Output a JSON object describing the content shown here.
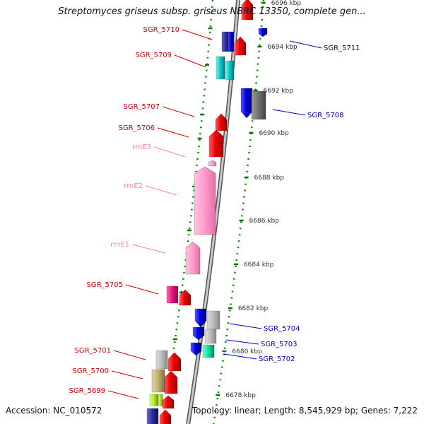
{
  "title": "Streptomyces griseus subsp. griseus NBRC 13350, complete gen...",
  "accession_text": "Accession: NC_010572",
  "summary_text": "Topology: linear; Length: 8,545,929 bp; Genes: 7,222",
  "colors": {
    "forward_label": "#d40000",
    "reverse_label": "#0000c8",
    "rrna_label": "#ff80b8",
    "dotted_track": "#008800",
    "backbone": "#999999",
    "red_gene": "#ee0000",
    "blue_gene": "#0000e0",
    "grey_gene": "#bbbbbb",
    "pink_gene": "#ff99cc"
  },
  "scale_ticks": [
    {
      "label": "6696 kbp"
    },
    {
      "label": "6694 kbp"
    },
    {
      "label": "6692 kbp"
    },
    {
      "label": "6690 kbp"
    },
    {
      "label": "6688 kbp"
    },
    {
      "label": "6686 kbp"
    },
    {
      "label": "6684 kbp"
    },
    {
      "label": "6682 kbp"
    },
    {
      "label": "6680 kbp"
    },
    {
      "label": "6678 kbp"
    }
  ],
  "forward_labels": [
    {
      "text": "SGR_5710",
      "kind": "gene"
    },
    {
      "text": "SGR_5709",
      "kind": "gene"
    },
    {
      "text": "SGR_5707",
      "kind": "gene"
    },
    {
      "text": "SGR_5706",
      "kind": "gene"
    },
    {
      "text": "rrnE3",
      "kind": "rrna"
    },
    {
      "text": "rrnE2",
      "kind": "rrna"
    },
    {
      "text": "rrnE1",
      "kind": "rrna"
    },
    {
      "text": "SGR_5705",
      "kind": "gene"
    },
    {
      "text": "SGR_5701",
      "kind": "gene"
    },
    {
      "text": "SGR_5700",
      "kind": "gene"
    },
    {
      "text": "SGR_5699",
      "kind": "gene"
    }
  ],
  "reverse_labels": [
    {
      "text": "SGR_5711"
    },
    {
      "text": "SGR_5708"
    },
    {
      "text": "SGR_5704"
    },
    {
      "text": "SGR_5703"
    },
    {
      "text": "SGR_5702"
    }
  ]
}
